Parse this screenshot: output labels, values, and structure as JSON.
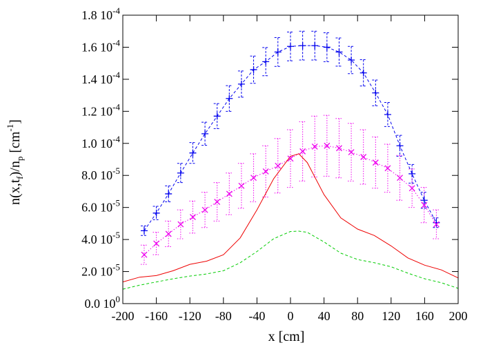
{
  "chart_data": {
    "type": "line",
    "xlabel": "x [cm]",
    "ylabel": "n(x,t_f)/n_p [cm^-1]",
    "xlim": [
      -200,
      200
    ],
    "ylim": [
      0,
      0.00018
    ],
    "grid": false,
    "legend": "none",
    "x_ticks": [
      -200,
      -160,
      -120,
      -80,
      -40,
      0,
      40,
      80,
      120,
      160,
      200
    ],
    "x_tick_labels": [
      "-200",
      "-160",
      "-120",
      "-80",
      "-40",
      "0",
      "40",
      "80",
      "120",
      "160",
      "200"
    ],
    "y_ticks": [
      0,
      2e-05,
      4e-05,
      6e-05,
      8e-05,
      0.0001,
      0.00012,
      0.00014,
      0.00016,
      0.00018
    ],
    "y_tick_labels": [
      {
        "mantissa": "0.0 10",
        "exponent": "0"
      },
      {
        "mantissa": "2.0 10",
        "exponent": "-5"
      },
      {
        "mantissa": "4.0 10",
        "exponent": "-5"
      },
      {
        "mantissa": "6.0 10",
        "exponent": "-5"
      },
      {
        "mantissa": "8.0 10",
        "exponent": "-5"
      },
      {
        "mantissa": "1.0 10",
        "exponent": "-4"
      },
      {
        "mantissa": "1.2 10",
        "exponent": "-4"
      },
      {
        "mantissa": "1.4 10",
        "exponent": "-4"
      },
      {
        "mantissa": "1.6 10",
        "exponent": "-4"
      },
      {
        "mantissa": "1.8 10",
        "exponent": "-4"
      }
    ],
    "series": [
      {
        "color": "#0000ee",
        "style": "dashed-points-errorbars",
        "marker": "plus",
        "x": [
          -174.5,
          -160,
          -145.5,
          -131,
          -116.5,
          -102,
          -87.5,
          -73,
          -58.5,
          -44,
          -29.5,
          -15,
          0,
          14.5,
          29,
          43.5,
          58,
          72.5,
          87,
          101.5,
          116,
          130.5,
          145,
          159.5,
          174
        ],
        "y": [
          4.55e-05,
          5.65e-05,
          6.85e-05,
          8.15e-05,
          9.4e-05,
          0.000106,
          0.000117,
          0.000128,
          0.000137,
          0.000146,
          0.000151,
          0.000157,
          0.0001605,
          0.000161,
          0.000161,
          0.00016,
          0.000157,
          0.000152,
          0.000144,
          0.0001315,
          0.000118,
          9.85e-05,
          8.1e-05,
          6.45e-05,
          5.05e-05
        ],
        "err": [
          3e-06,
          4.2e-06,
          5e-06,
          6e-06,
          6.5e-06,
          7.2e-06,
          7.8e-06,
          8e-06,
          8.2e-06,
          8.5e-06,
          8.8e-06,
          9e-06,
          9e-06,
          9e-06,
          9e-06,
          9e-06,
          8.8e-06,
          8.5e-06,
          8.2e-06,
          8e-06,
          7.5e-06,
          6.5e-06,
          5.8e-06,
          5e-06,
          3e-06
        ]
      },
      {
        "color": "#ee00ee",
        "style": "dotted-points-errorbars",
        "marker": "cross",
        "x": [
          -174.5,
          -160,
          -145.5,
          -131,
          -116.5,
          -102,
          -87.5,
          -73,
          -58.5,
          -44,
          -29.5,
          -15,
          0,
          14.5,
          29,
          43.5,
          58,
          72.5,
          87,
          101.5,
          116,
          130.5,
          145,
          159.5,
          174
        ],
        "y": [
          3.05e-05,
          3.75e-05,
          4.35e-05,
          4.95e-05,
          5.4e-05,
          5.85e-05,
          6.35e-05,
          6.85e-05,
          7.35e-05,
          7.85e-05,
          8.25e-05,
          8.6e-05,
          9.05e-05,
          9.5e-05,
          9.8e-05,
          9.85e-05,
          9.7e-05,
          9.45e-05,
          9.15e-05,
          8.8e-05,
          8.45e-05,
          7.85e-05,
          7.2e-05,
          6.15e-05,
          4.95e-05
        ],
        "err": [
          6e-06,
          7e-06,
          8e-06,
          9e-06,
          1e-05,
          1.1e-05,
          1.2e-05,
          1.3e-05,
          1.4e-05,
          1.5e-05,
          1.6e-05,
          1.7e-05,
          1.8e-05,
          1.85e-05,
          1.9e-05,
          1.9e-05,
          1.85e-05,
          1.8e-05,
          1.7e-05,
          1.6e-05,
          1.5e-05,
          1.4e-05,
          1.2e-05,
          1.1e-05,
          9e-06
        ]
      },
      {
        "color": "#ee0000",
        "style": "solid",
        "x": [
          -200,
          -180,
          -160,
          -140,
          -120,
          -100,
          -80,
          -60,
          -40,
          -20,
          0,
          10,
          20,
          40,
          60,
          80,
          100,
          120,
          140,
          160,
          180,
          200
        ],
        "y": [
          1.35e-05,
          1.65e-05,
          1.75e-05,
          2.05e-05,
          2.45e-05,
          2.65e-05,
          3.05e-05,
          4.1e-05,
          5.85e-05,
          7.8e-05,
          9.2e-05,
          9.35e-05,
          8.8e-05,
          6.8e-05,
          5.35e-05,
          4.65e-05,
          4.25e-05,
          3.6e-05,
          2.85e-05,
          2.4e-05,
          2.1e-05,
          1.6e-05
        ]
      },
      {
        "color": "#00cc00",
        "style": "dashed",
        "x": [
          -200,
          -180,
          -160,
          -140,
          -120,
          -100,
          -80,
          -60,
          -40,
          -20,
          0,
          10,
          20,
          40,
          60,
          80,
          100,
          120,
          140,
          160,
          180,
          200
        ],
        "y": [
          9e-06,
          1.15e-05,
          1.35e-05,
          1.55e-05,
          1.72e-05,
          1.85e-05,
          2.05e-05,
          2.55e-05,
          3.25e-05,
          4.05e-05,
          4.5e-05,
          4.52e-05,
          4.45e-05,
          3.85e-05,
          3.15e-05,
          2.75e-05,
          2.55e-05,
          2.3e-05,
          1.9e-05,
          1.55e-05,
          1.3e-05,
          9.5e-06
        ]
      }
    ]
  }
}
